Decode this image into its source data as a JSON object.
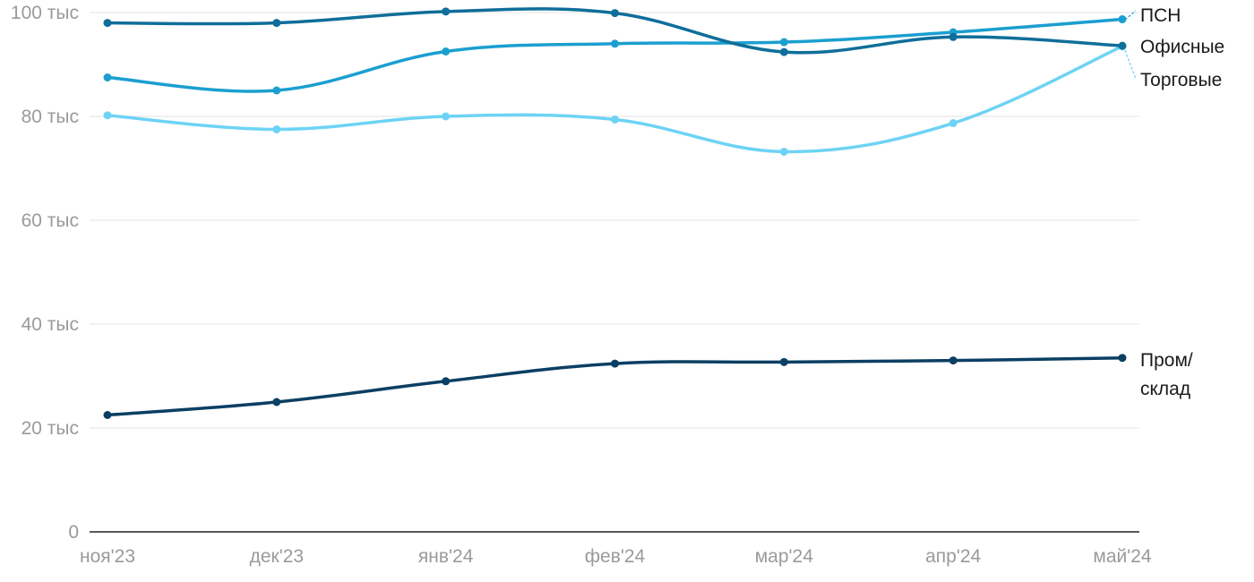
{
  "chart_data": {
    "type": "line",
    "title": "",
    "xlabel": "",
    "ylabel": "",
    "categories": [
      "ноя'23",
      "дек'23",
      "янв'24",
      "фев'24",
      "мар'24",
      "апр'24",
      "май'24"
    ],
    "ylim": [
      0,
      100000
    ],
    "yticks": [
      {
        "value": 0,
        "label": "0"
      },
      {
        "value": 20000,
        "label": "20 тыс"
      },
      {
        "value": 40000,
        "label": "40 тыс"
      },
      {
        "value": 60000,
        "label": "60 тыс"
      },
      {
        "value": 80000,
        "label": "80 тыс"
      },
      {
        "value": 100000,
        "label": "100 тыс"
      }
    ],
    "grid": true,
    "legend": "direct labels at right end of each line",
    "series": [
      {
        "id": "psn",
        "label_lines": [
          "ПСН"
        ],
        "color": "#1b9fd0",
        "values": [
          87500,
          85000,
          92500,
          94000,
          94300,
          96200,
          98700
        ]
      },
      {
        "id": "office",
        "label_lines": [
          "Офисные"
        ],
        "color": "#0f6e9a",
        "values": [
          98000,
          98000,
          100200,
          99900,
          92400,
          95300,
          93600
        ]
      },
      {
        "id": "retail",
        "label_lines": [
          "Торговые"
        ],
        "color": "#6dd3f5",
        "values": [
          80200,
          77500,
          80000,
          79400,
          73200,
          78700,
          93500
        ]
      },
      {
        "id": "industrial",
        "label_lines": [
          "Пром/",
          "склад"
        ],
        "color": "#0b3f63",
        "values": [
          22500,
          25000,
          29000,
          32400,
          32700,
          33000,
          33500
        ]
      }
    ]
  }
}
